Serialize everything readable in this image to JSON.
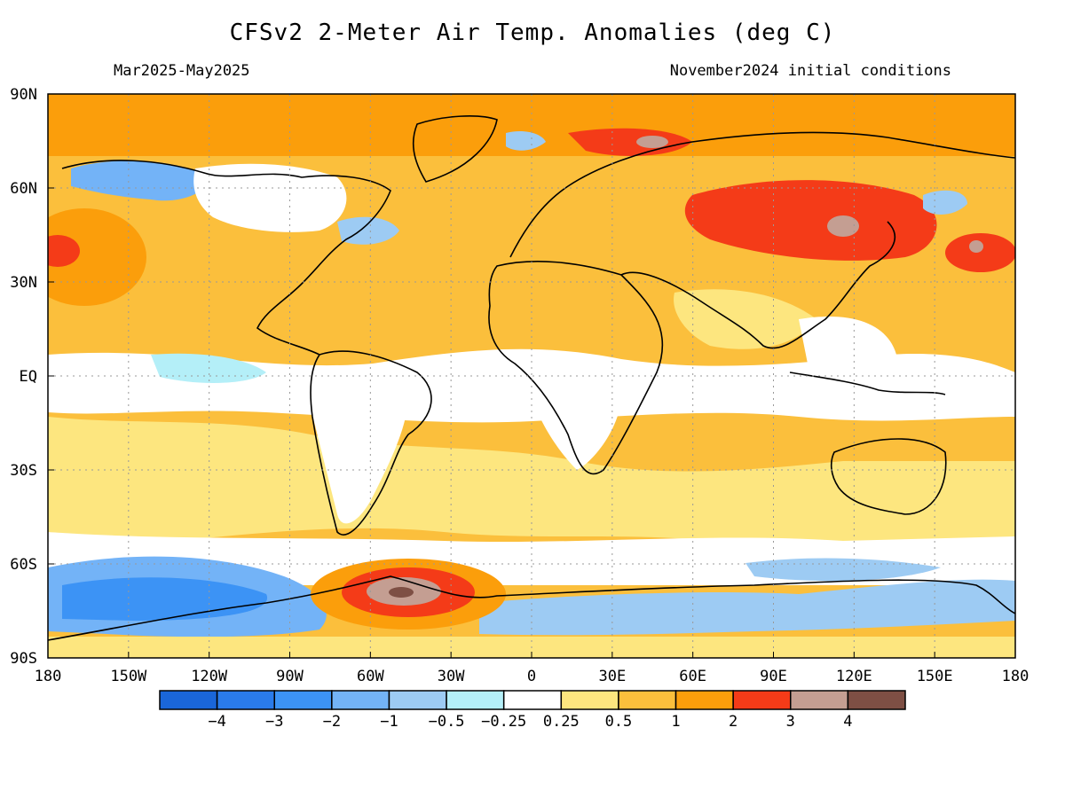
{
  "title": "CFSv2 2-Meter Air Temp. Anomalies (deg C)",
  "period": "Mar2025-May2025",
  "initial_conditions": "November2024 initial conditions",
  "map": {
    "lat_ticks": [
      "90N",
      "60N",
      "30N",
      "EQ",
      "30S",
      "60S",
      "90S"
    ],
    "lon_ticks": [
      "180",
      "150W",
      "120W",
      "90W",
      "60W",
      "30W",
      "0",
      "30E",
      "60E",
      "90E",
      "120E",
      "150E",
      "180"
    ]
  },
  "colorbar": {
    "labels": [
      "-4",
      "-3",
      "-2",
      "-1",
      "-0.5",
      "-0.25",
      "0.25",
      "0.5",
      "1",
      "2",
      "3",
      "4"
    ],
    "colors": [
      "#1a66d9",
      "#2a7bea",
      "#3c93f5",
      "#73b3f7",
      "#9dcbf3",
      "#b4eff8",
      "#ffffff",
      "#fde67f",
      "#fbbf3c",
      "#fb9e0b",
      "#f43b18",
      "#c49e92",
      "#7e4f44"
    ]
  }
}
